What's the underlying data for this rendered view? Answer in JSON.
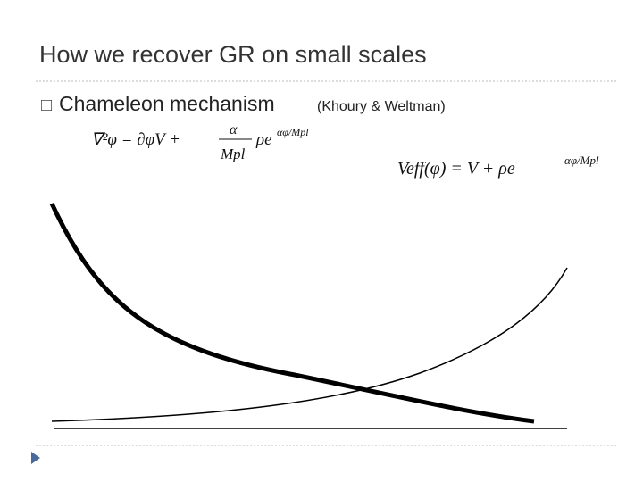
{
  "title": "How we recover GR on small scales",
  "bullet": {
    "marker": "□",
    "text": "Chameleon mechanism",
    "citation": "(Khoury & Weltman)"
  },
  "equations": {
    "field_equation": {
      "lhs": "∇²φ = ∂φV +",
      "numerator": "α",
      "denominator": "Mpl",
      "rhs": "ρe",
      "exponent": "αφ/Mpl"
    },
    "effective_potential": {
      "lhs": "Veff(φ) = V + ρe",
      "exponent": "αφ/Mpl"
    }
  }
}
